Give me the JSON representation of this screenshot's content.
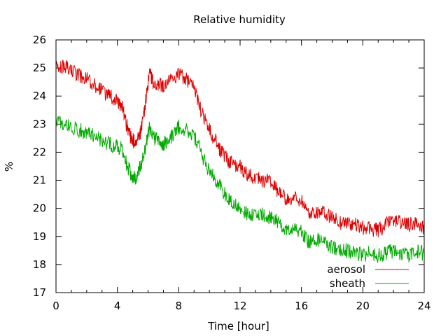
{
  "chart_data": {
    "type": "line",
    "title": "Relative humidity",
    "xlabel": "Time [hour]",
    "ylabel": "%",
    "xlim": [
      0,
      24
    ],
    "ylim": [
      17,
      26
    ],
    "xticks": [
      0,
      4,
      8,
      12,
      16,
      20,
      24
    ],
    "yticks": [
      17,
      18,
      19,
      20,
      21,
      22,
      23,
      24,
      25,
      26
    ],
    "grid": false,
    "legend_position": "bottom-right",
    "series": [
      {
        "name": "aerosol",
        "color": "#dd0000",
        "x": [
          0,
          0.5,
          1,
          1.5,
          2,
          2.5,
          3,
          3.5,
          4,
          4.3,
          4.6,
          4.9,
          5.2,
          5.5,
          5.8,
          6.1,
          6.4,
          6.7,
          7,
          7.5,
          8,
          8.5,
          9,
          9.5,
          10,
          10.5,
          11,
          11.5,
          12,
          12.5,
          13,
          13.5,
          14,
          14.5,
          15,
          15.5,
          16,
          16.5,
          17,
          17.5,
          18,
          18.5,
          19,
          19.5,
          20,
          20.5,
          21,
          21.5,
          22,
          22.5,
          23,
          23.5,
          24
        ],
        "y": [
          25.0,
          25.05,
          24.9,
          24.75,
          24.6,
          24.4,
          24.2,
          24.0,
          23.85,
          23.6,
          23.0,
          22.5,
          22.3,
          22.7,
          23.6,
          24.9,
          24.3,
          24.4,
          24.3,
          24.6,
          24.75,
          24.6,
          24.3,
          23.4,
          22.8,
          22.3,
          21.8,
          21.6,
          21.5,
          21.2,
          21.1,
          21.0,
          20.9,
          20.6,
          20.3,
          20.4,
          20.3,
          19.8,
          19.9,
          19.8,
          19.7,
          19.5,
          19.5,
          19.4,
          19.3,
          19.3,
          19.2,
          19.4,
          19.6,
          19.5,
          19.4,
          19.5,
          19.3
        ]
      },
      {
        "name": "sheath",
        "color": "#00aa00",
        "x": [
          0,
          0.5,
          1,
          1.5,
          2,
          2.5,
          3,
          3.5,
          4,
          4.3,
          4.6,
          4.9,
          5.2,
          5.5,
          5.8,
          6.1,
          6.4,
          6.7,
          7,
          7.5,
          8,
          8.5,
          9,
          9.5,
          10,
          10.5,
          11,
          11.5,
          12,
          12.5,
          13,
          13.5,
          14,
          14.5,
          15,
          15.5,
          16,
          16.5,
          17,
          17.5,
          18,
          18.5,
          19,
          19.5,
          20,
          20.5,
          21,
          21.5,
          22,
          22.5,
          23,
          23.5,
          24
        ],
        "y": [
          23.1,
          23.05,
          22.9,
          22.8,
          22.7,
          22.6,
          22.4,
          22.3,
          22.2,
          22.1,
          21.6,
          21.2,
          21.1,
          21.5,
          22.1,
          22.9,
          22.5,
          22.4,
          22.3,
          22.5,
          22.9,
          22.8,
          22.6,
          21.9,
          21.3,
          21.0,
          20.5,
          20.2,
          20.0,
          19.8,
          19.8,
          19.75,
          19.7,
          19.5,
          19.3,
          19.3,
          19.2,
          18.8,
          18.9,
          18.8,
          18.6,
          18.5,
          18.5,
          18.4,
          18.35,
          18.4,
          18.3,
          18.4,
          18.5,
          18.4,
          18.3,
          18.45,
          18.4
        ]
      }
    ]
  }
}
